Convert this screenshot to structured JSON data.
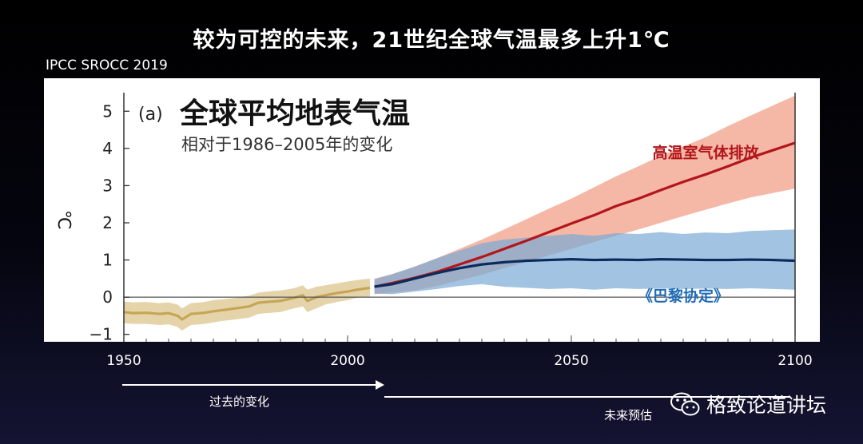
{
  "slide": {
    "title": "较为可控的未来，21世纪全球气温最多上升1℃",
    "source": "IPCC SROCC 2019",
    "past_label": "过去的变化",
    "future_label": "未来预估",
    "brand": "格致论道讲坛",
    "brand_icon": "wechat-icon"
  },
  "chart_data": {
    "type": "line",
    "panel_label": "(a)",
    "title": "全球平均地表气温",
    "subtitle": "相对于1986–2005年的变化",
    "ylabel": "℃",
    "xlim": [
      1950,
      2100
    ],
    "ylim": [
      -1.2,
      5.5
    ],
    "yticks": [
      "5",
      "4",
      "3",
      "2",
      "1",
      "0",
      "−1"
    ],
    "ytick_values": [
      5,
      4,
      3,
      2,
      1,
      0,
      -1
    ],
    "xticks": [
      "1950",
      "2000",
      "2050",
      "2100"
    ],
    "xtick_values": [
      1950,
      2000,
      2050,
      2100
    ],
    "series": [
      {
        "name": "historical",
        "color": "#c6a656",
        "band_color": "#dcc48e",
        "x": [
          1950,
          1952,
          1955,
          1958,
          1960,
          1962,
          1963,
          1965,
          1968,
          1970,
          1972,
          1975,
          1978,
          1980,
          1983,
          1985,
          1988,
          1990,
          1991,
          1993,
          1995,
          1998,
          2000,
          2002,
          2005
        ],
        "values": [
          -0.4,
          -0.43,
          -0.42,
          -0.45,
          -0.43,
          -0.5,
          -0.6,
          -0.45,
          -0.42,
          -0.38,
          -0.35,
          -0.3,
          -0.25,
          -0.15,
          -0.12,
          -0.1,
          -0.02,
          0.05,
          -0.1,
          0.0,
          0.05,
          0.12,
          0.15,
          0.2,
          0.25
        ],
        "lower": [
          -0.7,
          -0.72,
          -0.72,
          -0.75,
          -0.73,
          -0.8,
          -0.9,
          -0.75,
          -0.72,
          -0.68,
          -0.64,
          -0.6,
          -0.55,
          -0.45,
          -0.42,
          -0.4,
          -0.3,
          -0.25,
          -0.4,
          -0.3,
          -0.2,
          -0.12,
          -0.08,
          -0.02,
          0.02
        ],
        "upper": [
          -0.12,
          -0.14,
          -0.13,
          -0.16,
          -0.14,
          -0.2,
          -0.3,
          -0.16,
          -0.13,
          -0.08,
          -0.06,
          -0.02,
          0.04,
          0.12,
          0.16,
          0.18,
          0.24,
          0.32,
          0.2,
          0.28,
          0.32,
          0.38,
          0.42,
          0.46,
          0.5
        ]
      },
      {
        "name": "高温室气体排放",
        "color": "#b3151b",
        "band_color": "#f2a088",
        "x": [
          2006,
          2010,
          2015,
          2020,
          2025,
          2030,
          2035,
          2040,
          2045,
          2050,
          2055,
          2060,
          2065,
          2070,
          2075,
          2080,
          2085,
          2090,
          2095,
          2100
        ],
        "values": [
          0.28,
          0.38,
          0.52,
          0.68,
          0.88,
          1.08,
          1.3,
          1.52,
          1.75,
          1.98,
          2.2,
          2.45,
          2.65,
          2.88,
          3.1,
          3.3,
          3.52,
          3.75,
          3.95,
          4.15
        ],
        "lower": [
          0.08,
          0.12,
          0.18,
          0.3,
          0.45,
          0.6,
          0.78,
          0.95,
          1.12,
          1.3,
          1.48,
          1.65,
          1.82,
          2.0,
          2.18,
          2.35,
          2.52,
          2.68,
          2.8,
          2.92
        ],
        "upper": [
          0.5,
          0.62,
          0.82,
          1.05,
          1.3,
          1.55,
          1.82,
          2.1,
          2.38,
          2.65,
          2.95,
          3.25,
          3.52,
          3.8,
          4.05,
          4.3,
          4.6,
          4.88,
          5.15,
          5.42
        ]
      },
      {
        "name": "《巴黎协定》",
        "color": "#0a2c5c",
        "band_color": "#7aaad6",
        "x": [
          2006,
          2010,
          2015,
          2020,
          2025,
          2030,
          2035,
          2040,
          2045,
          2050,
          2055,
          2060,
          2065,
          2070,
          2075,
          2080,
          2085,
          2090,
          2095,
          2100
        ],
        "values": [
          0.28,
          0.35,
          0.5,
          0.65,
          0.78,
          0.88,
          0.94,
          0.98,
          1.0,
          1.02,
          1.0,
          1.01,
          1.0,
          1.02,
          1.01,
          1.0,
          1.0,
          1.01,
          1.0,
          0.98
        ],
        "lower": [
          0.1,
          0.08,
          0.15,
          0.22,
          0.3,
          0.35,
          0.28,
          0.25,
          0.22,
          0.24,
          0.2,
          0.24,
          0.22,
          0.24,
          0.22,
          0.23,
          0.22,
          0.24,
          0.22,
          0.2
        ],
        "upper": [
          0.48,
          0.62,
          0.82,
          1.05,
          1.25,
          1.45,
          1.55,
          1.6,
          1.65,
          1.7,
          1.65,
          1.72,
          1.7,
          1.75,
          1.7,
          1.74,
          1.72,
          1.78,
          1.8,
          1.82
        ]
      }
    ],
    "annotations": [
      {
        "text": "高温室气体排放",
        "color": "#b3151b",
        "x": 2080,
        "y": 3.9
      },
      {
        "text": "《巴黎协定》",
        "color": "#1f6cb8",
        "x": 2075,
        "y": 0.05
      }
    ]
  }
}
